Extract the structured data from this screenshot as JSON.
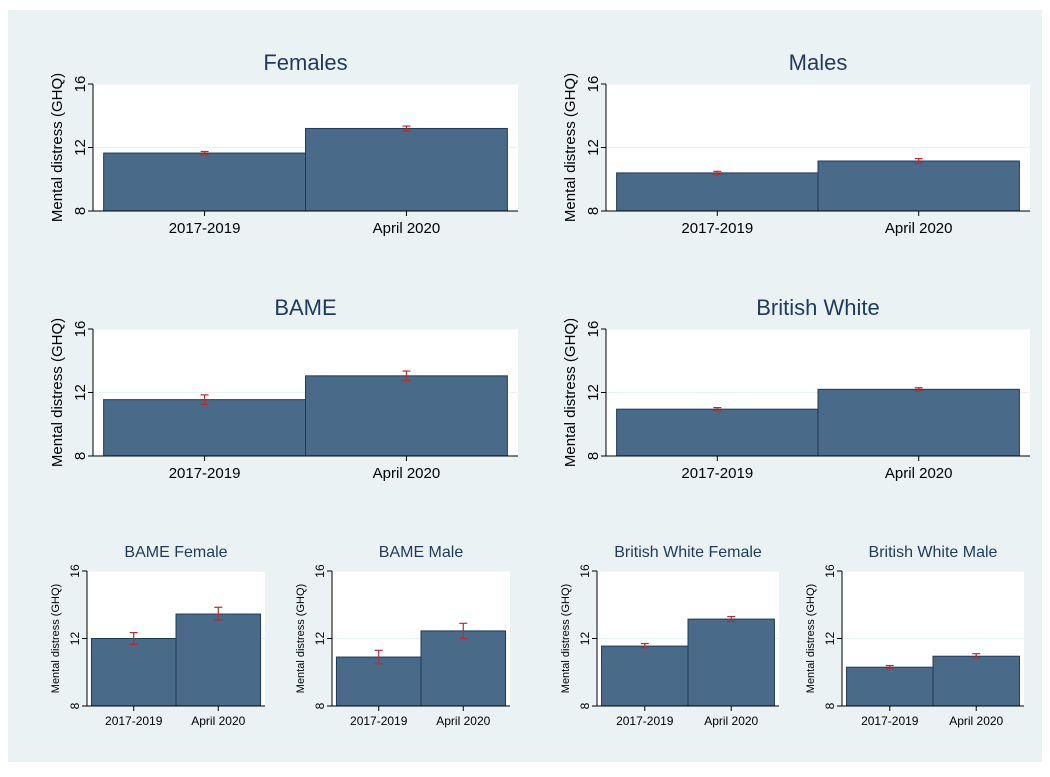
{
  "figure": {
    "background_color": "#eaf2f3",
    "plot_background_color": "#ffffff",
    "bar_fill_color": "#4a6a8a",
    "bar_edge_color": "#1f3b57",
    "errorbar_color": "#b03030",
    "gridline_color": "#eaf2f3",
    "title_color": "#1e3a5f"
  },
  "chart_data": [
    {
      "type": "bar",
      "title": "Females",
      "ylabel": "Mental distress (GHQ)",
      "categories": [
        "2017-2019",
        "April 2020"
      ],
      "values": [
        11.65,
        13.2
      ],
      "error_low": [
        11.55,
        13.05
      ],
      "error_high": [
        11.75,
        13.35
      ],
      "ylim": [
        8,
        16
      ],
      "yticks": [
        "8",
        "12",
        "16"
      ],
      "grid": true
    },
    {
      "type": "bar",
      "title": "Males",
      "ylabel": "Mental distress (GHQ)",
      "categories": [
        "2017-2019",
        "April 2020"
      ],
      "values": [
        10.4,
        11.15
      ],
      "error_low": [
        10.3,
        11.0
      ],
      "error_high": [
        10.5,
        11.3
      ],
      "ylim": [
        8,
        16
      ],
      "yticks": [
        "8",
        "12",
        "16"
      ],
      "grid": true
    },
    {
      "type": "bar",
      "title": "BAME",
      "ylabel": "Mental distress (GHQ)",
      "categories": [
        "2017-2019",
        "April 2020"
      ],
      "values": [
        11.55,
        13.05
      ],
      "error_low": [
        11.25,
        12.75
      ],
      "error_high": [
        11.85,
        13.35
      ],
      "ylim": [
        8,
        16
      ],
      "yticks": [
        "8",
        "12",
        "16"
      ],
      "grid": true
    },
    {
      "type": "bar",
      "title": "British White",
      "ylabel": "Mental distress (GHQ)",
      "categories": [
        "2017-2019",
        "April 2020"
      ],
      "values": [
        10.95,
        12.2
      ],
      "error_low": [
        10.85,
        12.1
      ],
      "error_high": [
        11.05,
        12.3
      ],
      "ylim": [
        8,
        16
      ],
      "yticks": [
        "8",
        "12",
        "16"
      ],
      "grid": true
    },
    {
      "type": "bar",
      "title": "BAME Female",
      "ylabel": "Mental distress (GHQ)",
      "categories": [
        "2017-2019",
        "April 2020"
      ],
      "values": [
        12.0,
        13.45
      ],
      "error_low": [
        11.65,
        13.1
      ],
      "error_high": [
        12.35,
        13.85
      ],
      "ylim": [
        8,
        16
      ],
      "yticks": [
        "8",
        "12",
        "16"
      ],
      "grid": true
    },
    {
      "type": "bar",
      "title": "BAME Male",
      "ylabel": "Mental distress (GHQ)",
      "categories": [
        "2017-2019",
        "April 2020"
      ],
      "values": [
        10.9,
        12.45
      ],
      "error_low": [
        10.5,
        12.0
      ],
      "error_high": [
        11.3,
        12.9
      ],
      "ylim": [
        8,
        16
      ],
      "yticks": [
        "8",
        "12",
        "16"
      ],
      "grid": true
    },
    {
      "type": "bar",
      "title": "British White Female",
      "ylabel": "Mental distress (GHQ)",
      "categories": [
        "2017-2019",
        "April 2020"
      ],
      "values": [
        11.55,
        13.15
      ],
      "error_low": [
        11.45,
        13.0
      ],
      "error_high": [
        11.7,
        13.3
      ],
      "ylim": [
        8,
        16
      ],
      "yticks": [
        "8",
        "12",
        "16"
      ],
      "grid": true
    },
    {
      "type": "bar",
      "title": "British White Male",
      "ylabel": "Mental distress (GHQ)",
      "categories": [
        "2017-2019",
        "April 2020"
      ],
      "values": [
        10.3,
        10.95
      ],
      "error_low": [
        10.2,
        10.85
      ],
      "error_high": [
        10.4,
        11.1
      ],
      "ylim": [
        8,
        16
      ],
      "yticks": [
        "8",
        "12",
        "16"
      ],
      "grid": true
    }
  ]
}
